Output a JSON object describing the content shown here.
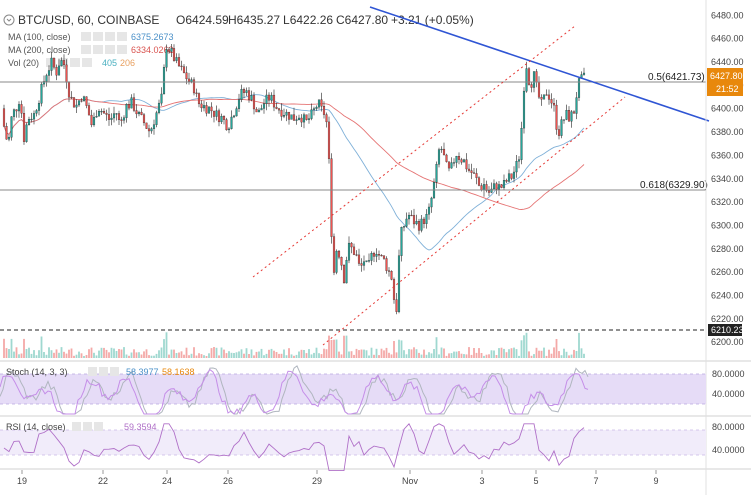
{
  "header": {
    "symbol": "BTC/USD, 60, COINBASE",
    "ohlc": [
      {
        "k": "O",
        "v": "6424.59"
      },
      {
        "k": "H",
        "v": "6435.27"
      },
      {
        "k": "L",
        "v": "6422.26"
      },
      {
        "k": "C",
        "v": "6427.80"
      }
    ],
    "change": "+3.21 (+0.05%)"
  },
  "indicators": [
    {
      "label": "MA (100, close)",
      "value": "6375.2673",
      "color": "#4a90c8"
    },
    {
      "label": "MA (200, close)",
      "value": "6334.0262",
      "color": "#d9534f"
    },
    {
      "label": "Vol (20)",
      "values": [
        {
          "v": "405",
          "color": "#4ab0c0"
        },
        {
          "v": "206",
          "color": "#e8a060"
        }
      ]
    }
  ],
  "price_axis": {
    "ticks": [
      "6480.00",
      "6460.00",
      "6440.00",
      "6420.00",
      "6400.00",
      "6380.00",
      "6360.00",
      "6340.00",
      "6320.00",
      "6300.00",
      "6280.00",
      "6260.00",
      "6240.00",
      "6220.00",
      "6200.00"
    ],
    "current_price": "6427.80",
    "countdown": "21:52",
    "marker_price": "6210.23"
  },
  "annotations": {
    "fib_05": "0.5(6421.73)",
    "fib_0618": "0.618(6329.90)"
  },
  "stoch": {
    "label": "Stoch (14, 3, 3)",
    "k": "58.3977",
    "d": "58.1638",
    "ticks": [
      "80.0000",
      "40.0000"
    ]
  },
  "rsi": {
    "label": "RSI (14, close)",
    "value": "59.3594",
    "ticks": [
      "80.0000",
      "40.0000"
    ]
  },
  "x_axis": {
    "ticks": [
      "19",
      "22",
      "24",
      "26",
      "29",
      "Nov",
      "3",
      "5",
      "7",
      "9"
    ]
  },
  "colors": {
    "up": "#26a69a",
    "down": "#ef5350",
    "trendline": "#2f55d4",
    "channel": "#e53935",
    "ma100": "#7fb0d8",
    "ma200": "#e57373",
    "stoch_band": "#e6dcf7",
    "stoch_k": "#b0b6bf",
    "stoch_d": "#c58ee8",
    "rsi_line": "#b070c8",
    "price_tag": "#e8880c"
  },
  "chart_data": {
    "type": "candlestick",
    "ylim": [
      6195,
      6488
    ],
    "xlabel": "",
    "ylabel": "",
    "x_ticks": [
      "19",
      "22",
      "24",
      "26",
      "29",
      "Nov",
      "3",
      "5",
      "7",
      "9"
    ],
    "close_path": [
      [
        0,
        6400
      ],
      [
        4,
        6385
      ],
      [
        8,
        6368
      ],
      [
        12,
        6395
      ],
      [
        16,
        6400
      ],
      [
        20,
        6410
      ],
      [
        24,
        6375
      ],
      [
        28,
        6392
      ],
      [
        34,
        6395
      ],
      [
        40,
        6412
      ],
      [
        46,
        6430
      ],
      [
        52,
        6440
      ],
      [
        56,
        6430
      ],
      [
        60,
        6442
      ],
      [
        64,
        6438
      ],
      [
        70,
        6410
      ],
      [
        76,
        6402
      ],
      [
        82,
        6412
      ],
      [
        88,
        6398
      ],
      [
        92,
        6385
      ],
      [
        98,
        6402
      ],
      [
        104,
        6396
      ],
      [
        110,
        6390
      ],
      [
        116,
        6398
      ],
      [
        120,
        6386
      ],
      [
        126,
        6402
      ],
      [
        132,
        6405
      ],
      [
        138,
        6395
      ],
      [
        144,
        6388
      ],
      [
        150,
        6380
      ],
      [
        156,
        6395
      ],
      [
        162,
        6410
      ],
      [
        166,
        6455
      ],
      [
        170,
        6450
      ],
      [
        176,
        6440
      ],
      [
        182,
        6432
      ],
      [
        188,
        6425
      ],
      [
        194,
        6418
      ],
      [
        198,
        6405
      ],
      [
        204,
        6402
      ],
      [
        210,
        6400
      ],
      [
        216,
        6395
      ],
      [
        222,
        6392
      ],
      [
        228,
        6385
      ],
      [
        234,
        6398
      ],
      [
        240,
        6412
      ],
      [
        246,
        6415
      ],
      [
        252,
        6408
      ],
      [
        258,
        6395
      ],
      [
        264,
        6405
      ],
      [
        270,
        6410
      ],
      [
        276,
        6402
      ],
      [
        282,
        6398
      ],
      [
        288,
        6395
      ],
      [
        294,
        6392
      ],
      [
        300,
        6395
      ],
      [
        306,
        6388
      ],
      [
        312,
        6395
      ],
      [
        318,
        6405
      ],
      [
        322,
        6398
      ],
      [
        326,
        6395
      ],
      [
        330,
        6340
      ],
      [
        333,
        6250
      ],
      [
        336,
        6280
      ],
      [
        340,
        6275
      ],
      [
        344,
        6255
      ],
      [
        348,
        6282
      ],
      [
        352,
        6280
      ],
      [
        356,
        6275
      ],
      [
        360,
        6262
      ],
      [
        364,
        6270
      ],
      [
        368,
        6262
      ],
      [
        372,
        6275
      ],
      [
        376,
        6280
      ],
      [
        380,
        6273
      ],
      [
        384,
        6270
      ],
      [
        388,
        6262
      ],
      [
        392,
        6255
      ],
      [
        396,
        6220
      ],
      [
        400,
        6290
      ],
      [
        404,
        6300
      ],
      [
        408,
        6310
      ],
      [
        412,
        6305
      ],
      [
        416,
        6302
      ],
      [
        420,
        6300
      ],
      [
        424,
        6305
      ],
      [
        428,
        6308
      ],
      [
        432,
        6325
      ],
      [
        436,
        6345
      ],
      [
        440,
        6370
      ],
      [
        444,
        6358
      ],
      [
        448,
        6345
      ],
      [
        452,
        6350
      ],
      [
        456,
        6362
      ],
      [
        460,
        6358
      ],
      [
        464,
        6355
      ],
      [
        468,
        6348
      ],
      [
        472,
        6345
      ],
      [
        476,
        6340
      ],
      [
        480,
        6332
      ],
      [
        484,
        6335
      ],
      [
        488,
        6328
      ],
      [
        492,
        6330
      ],
      [
        496,
        6335
      ],
      [
        500,
        6332
      ],
      [
        504,
        6335
      ],
      [
        508,
        6340
      ],
      [
        512,
        6342
      ],
      [
        516,
        6350
      ],
      [
        520,
        6362
      ],
      [
        524,
        6420
      ],
      [
        526,
        6440
      ],
      [
        530,
        6420
      ],
      [
        534,
        6428
      ],
      [
        538,
        6412
      ],
      [
        542,
        6402
      ],
      [
        546,
        6415
      ],
      [
        550,
        6410
      ],
      [
        554,
        6400
      ],
      [
        558,
        6378
      ],
      [
        562,
        6388
      ],
      [
        566,
        6395
      ],
      [
        570,
        6392
      ],
      [
        574,
        6398
      ],
      [
        578,
        6420
      ],
      [
        582,
        6425
      ],
      [
        586,
        6428
      ]
    ]
  }
}
